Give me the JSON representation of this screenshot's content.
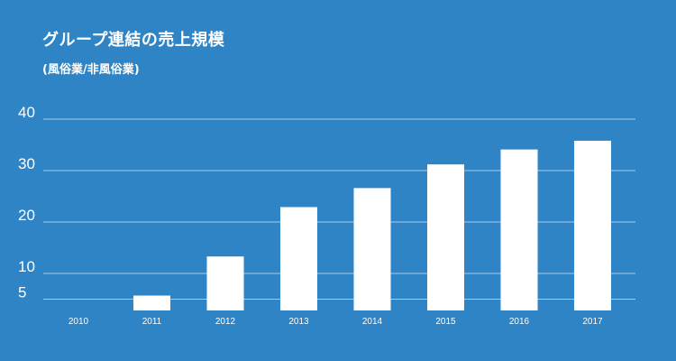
{
  "header": {
    "title": "グループ連結の売上規模",
    "subtitle": "(風俗業/非風俗業)"
  },
  "colors": {
    "background": "#2f84c6",
    "bars": "#ffffff",
    "gridlines": "#a9cbe6",
    "text": "#ffffff"
  },
  "chart_data": {
    "type": "bar",
    "title": "グループ連結の売上規模",
    "subtitle": "(風俗業/非風俗業)",
    "xlabel": "",
    "ylabel": "",
    "categories": [
      "2010",
      "2011",
      "2012",
      "2013",
      "2014",
      "2015",
      "2016",
      "2017"
    ],
    "values": [
      2.5,
      5.7,
      13.3,
      22.9,
      26.6,
      31.2,
      34.1,
      35.8
    ],
    "ylim": [
      0,
      40
    ],
    "yticks": [
      5,
      10,
      20,
      30,
      40
    ],
    "ytick_labels": [
      "5",
      "10",
      "20",
      "30",
      "40"
    ],
    "grid": true,
    "legend": "none"
  }
}
